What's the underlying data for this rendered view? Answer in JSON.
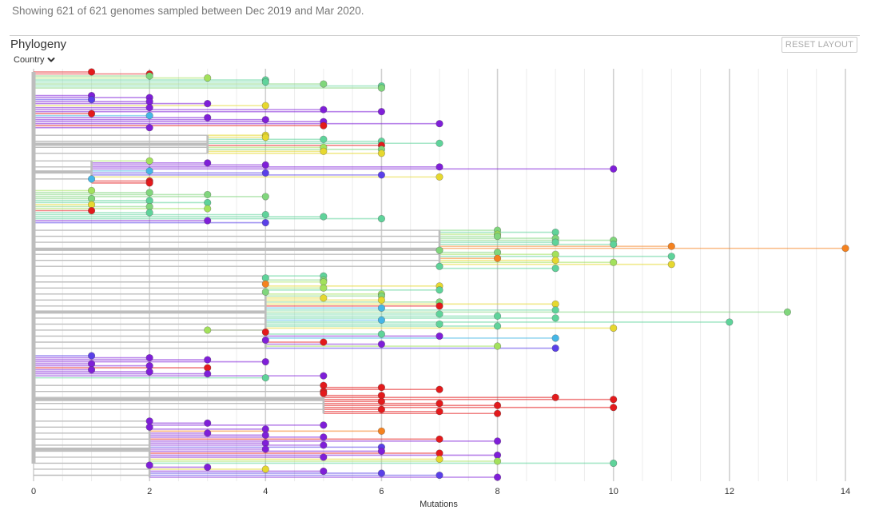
{
  "header": {
    "summary": "Showing 621 of 621 genomes sampled between Dec 2019 and Mar 2020."
  },
  "panel": {
    "title": "Phylogeny",
    "color_by": "Country",
    "color_by_icon": "chevron-down-icon",
    "reset_label": "RESET LAYOUT"
  },
  "colors": {
    "branch": "#bdbdbd",
    "grid_major": "#d0d0d0",
    "grid_minor": "#ececec"
  },
  "chart_data": {
    "type": "scatter",
    "title": "",
    "xlabel": "Mutations",
    "ylabel": "",
    "xlim": [
      0,
      14
    ],
    "x_ticks": [
      0,
      2,
      4,
      6,
      8,
      10,
      12,
      14
    ],
    "grid": true,
    "tree": {
      "note_root_x": 0,
      "clades": [
        {
          "x": 0,
          "tips": [
            {
              "x": 1,
              "c": "#e31a1c"
            },
            {
              "x": 2,
              "c": "#e31a1c"
            },
            {
              "x": 2,
              "c": "#80d67c"
            },
            {
              "x": 3,
              "c": "#a3e15c"
            },
            {
              "x": 4,
              "c": "#5fd39a"
            },
            {
              "x": 4,
              "c": "#5fd39a"
            },
            {
              "x": 5,
              "c": "#80d67c"
            },
            {
              "x": 6,
              "c": "#5fd39a"
            },
            {
              "x": 6,
              "c": "#80d67c"
            }
          ]
        },
        {
          "x": 0,
          "tips": [
            {
              "x": 1,
              "c": "#7f1fd8"
            },
            {
              "x": 2,
              "c": "#7f1fd8"
            },
            {
              "x": 1,
              "c": "#5a40e8"
            },
            {
              "x": 2,
              "c": "#7f1fd8"
            },
            {
              "x": 3,
              "c": "#7f1fd8"
            },
            {
              "x": 4,
              "c": "#e6d82f"
            },
            {
              "x": 2,
              "c": "#7f1fd8"
            },
            {
              "x": 5,
              "c": "#7f1fd8"
            },
            {
              "x": 6,
              "c": "#7f1fd8"
            },
            {
              "x": 1,
              "c": "#e31a1c"
            },
            {
              "x": 2,
              "c": "#45b6e6"
            },
            {
              "x": 3,
              "c": "#7f1fd8"
            },
            {
              "x": 4,
              "c": "#7f1fd8"
            },
            {
              "x": 5,
              "c": "#7f1fd8"
            },
            {
              "x": 7,
              "c": "#7f1fd8"
            },
            {
              "x": 5,
              "c": "#e31a1c"
            },
            {
              "x": 2,
              "c": "#7f1fd8"
            }
          ]
        },
        {
          "x": 3,
          "tips": [
            {
              "x": 4,
              "c": "#e6d82f"
            },
            {
              "x": 4,
              "c": "#e6d82f"
            },
            {
              "x": 5,
              "c": "#5fd39a"
            },
            {
              "x": 6,
              "c": "#5fd39a"
            },
            {
              "x": 7,
              "c": "#5fd39a"
            },
            {
              "x": 6,
              "c": "#e31a1c"
            },
            {
              "x": 5,
              "c": "#a3e15c"
            },
            {
              "x": 6,
              "c": "#80d67c"
            },
            {
              "x": 5,
              "c": "#e6d82f"
            },
            {
              "x": 6,
              "c": "#e6d82f"
            }
          ]
        },
        {
          "x": 1,
          "tips": [
            {
              "x": 2,
              "c": "#a3e15c"
            },
            {
              "x": 3,
              "c": "#7f1fd8"
            },
            {
              "x": 4,
              "c": "#7f1fd8"
            },
            {
              "x": 7,
              "c": "#7f1fd8"
            },
            {
              "x": 10,
              "c": "#7f1fd8"
            },
            {
              "x": 2,
              "c": "#45b6e6"
            },
            {
              "x": 4,
              "c": "#5a40e8"
            },
            {
              "x": 6,
              "c": "#5a40e8"
            },
            {
              "x": 7,
              "c": "#e6d82f"
            },
            {
              "x": 1,
              "c": "#45b6e6"
            },
            {
              "x": 2,
              "c": "#e31a1c"
            },
            {
              "x": 2,
              "c": "#e31a1c"
            }
          ]
        },
        {
          "x": 0,
          "tips": [
            {
              "x": 1,
              "c": "#a3e15c"
            },
            {
              "x": 2,
              "c": "#80d67c"
            },
            {
              "x": 3,
              "c": "#80d67c"
            },
            {
              "x": 4,
              "c": "#80d67c"
            },
            {
              "x": 1,
              "c": "#80d67c"
            },
            {
              "x": 2,
              "c": "#5fd39a"
            },
            {
              "x": 3,
              "c": "#5fd39a"
            },
            {
              "x": 1,
              "c": "#e6d82f"
            },
            {
              "x": 2,
              "c": "#80d67c"
            },
            {
              "x": 3,
              "c": "#a3e15c"
            },
            {
              "x": 1,
              "c": "#e31a1c"
            },
            {
              "x": 2,
              "c": "#5fd39a"
            },
            {
              "x": 4,
              "c": "#5fd39a"
            },
            {
              "x": 5,
              "c": "#5fd39a"
            },
            {
              "x": 6,
              "c": "#5fd39a"
            },
            {
              "x": 3,
              "c": "#7f1fd8"
            },
            {
              "x": 4,
              "c": "#5a40e8"
            }
          ]
        },
        {
          "x": 7,
          "tips": [
            {
              "x": 8,
              "c": "#80d67c"
            },
            {
              "x": 9,
              "c": "#5fd39a"
            },
            {
              "x": 8,
              "c": "#a3e15c"
            },
            {
              "x": 8,
              "c": "#80d67c"
            },
            {
              "x": 9,
              "c": "#80d67c"
            },
            {
              "x": 10,
              "c": "#80d67c"
            },
            {
              "x": 9,
              "c": "#5fd39a"
            },
            {
              "x": 10,
              "c": "#5fd39a"
            },
            {
              "x": 11,
              "c": "#f5821f"
            },
            {
              "x": 14,
              "c": "#f5821f"
            },
            {
              "x": 7,
              "c": "#80d67c"
            },
            {
              "x": 8,
              "c": "#80d67c"
            },
            {
              "x": 9,
              "c": "#a3e15c"
            },
            {
              "x": 11,
              "c": "#5fd39a"
            },
            {
              "x": 8,
              "c": "#f5821f"
            },
            {
              "x": 9,
              "c": "#e6d82f"
            },
            {
              "x": 10,
              "c": "#a3e15c"
            },
            {
              "x": 11,
              "c": "#e6d82f"
            },
            {
              "x": 7,
              "c": "#5fd39a"
            },
            {
              "x": 9,
              "c": "#5fd39a"
            }
          ]
        },
        {
          "x": 4,
          "tips": [
            {
              "x": 5,
              "c": "#5fd39a"
            },
            {
              "x": 4,
              "c": "#5fd39a"
            },
            {
              "x": 5,
              "c": "#80d67c"
            },
            {
              "x": 5,
              "c": "#a3e15c"
            },
            {
              "x": 4,
              "c": "#f5821f"
            },
            {
              "x": 7,
              "c": "#e6d82f"
            },
            {
              "x": 5,
              "c": "#a3e15c"
            },
            {
              "x": 7,
              "c": "#5fd39a"
            },
            {
              "x": 4,
              "c": "#80d67c"
            },
            {
              "x": 6,
              "c": "#a3e15c"
            },
            {
              "x": 6,
              "c": "#80d67c"
            },
            {
              "x": 5,
              "c": "#e6d82f"
            },
            {
              "x": 6,
              "c": "#e6d82f"
            },
            {
              "x": 7,
              "c": "#80d67c"
            },
            {
              "x": 9,
              "c": "#e6d82f"
            },
            {
              "x": 7,
              "c": "#e31a1c"
            },
            {
              "x": 6,
              "c": "#45b6e6"
            },
            {
              "x": 9,
              "c": "#5fd39a"
            },
            {
              "x": 13,
              "c": "#80d67c"
            },
            {
              "x": 7,
              "c": "#5fd39a"
            },
            {
              "x": 8,
              "c": "#5fd39a"
            },
            {
              "x": 9,
              "c": "#5fd39a"
            },
            {
              "x": 6,
              "c": "#45b6e6"
            },
            {
              "x": 12,
              "c": "#5fd39a"
            },
            {
              "x": 7,
              "c": "#5fd39a"
            },
            {
              "x": 8,
              "c": "#5fd39a"
            },
            {
              "x": 10,
              "c": "#e6d82f"
            },
            {
              "x": 3,
              "c": "#a3e15c"
            },
            {
              "x": 4,
              "c": "#e31a1c"
            },
            {
              "x": 6,
              "c": "#5fd39a"
            },
            {
              "x": 7,
              "c": "#7f1fd8"
            },
            {
              "x": 9,
              "c": "#45b6e6"
            },
            {
              "x": 4,
              "c": "#7f1fd8"
            },
            {
              "x": 5,
              "c": "#e31a1c"
            },
            {
              "x": 6,
              "c": "#7f1fd8"
            },
            {
              "x": 8,
              "c": "#a3e15c"
            },
            {
              "x": 9,
              "c": "#5a40e8"
            }
          ]
        },
        {
          "x": 0,
          "tips": [
            {
              "x": 1,
              "c": "#5a40e8"
            },
            {
              "x": 2,
              "c": "#7f1fd8"
            },
            {
              "x": 3,
              "c": "#7f1fd8"
            },
            {
              "x": 4,
              "c": "#7f1fd8"
            },
            {
              "x": 1,
              "c": "#7f1fd8"
            },
            {
              "x": 2,
              "c": "#7f1fd8"
            },
            {
              "x": 3,
              "c": "#e31a1c"
            },
            {
              "x": 1,
              "c": "#7f1fd8"
            },
            {
              "x": 2,
              "c": "#7f1fd8"
            },
            {
              "x": 3,
              "c": "#7f1fd8"
            },
            {
              "x": 5,
              "c": "#7f1fd8"
            },
            {
              "x": 4,
              "c": "#5fd39a"
            }
          ]
        },
        {
          "x": 5,
          "tips": [
            {
              "x": 5,
              "c": "#e31a1c"
            },
            {
              "x": 6,
              "c": "#e31a1c"
            },
            {
              "x": 7,
              "c": "#e31a1c"
            },
            {
              "x": 5,
              "c": "#e31a1c"
            },
            {
              "x": 5,
              "c": "#e31a1c"
            },
            {
              "x": 6,
              "c": "#e31a1c"
            },
            {
              "x": 9,
              "c": "#e31a1c"
            },
            {
              "x": 10,
              "c": "#e31a1c"
            },
            {
              "x": 6,
              "c": "#e31a1c"
            },
            {
              "x": 7,
              "c": "#e31a1c"
            },
            {
              "x": 8,
              "c": "#e31a1c"
            },
            {
              "x": 10,
              "c": "#e31a1c"
            },
            {
              "x": 6,
              "c": "#e31a1c"
            },
            {
              "x": 7,
              "c": "#e31a1c"
            },
            {
              "x": 8,
              "c": "#e31a1c"
            }
          ]
        },
        {
          "x": 2,
          "tips": [
            {
              "x": 2,
              "c": "#7f1fd8"
            },
            {
              "x": 3,
              "c": "#7f1fd8"
            },
            {
              "x": 5,
              "c": "#7f1fd8"
            },
            {
              "x": 2,
              "c": "#7f1fd8"
            },
            {
              "x": 4,
              "c": "#7f1fd8"
            },
            {
              "x": 6,
              "c": "#f5821f"
            },
            {
              "x": 3,
              "c": "#7f1fd8"
            },
            {
              "x": 4,
              "c": "#7f1fd8"
            },
            {
              "x": 5,
              "c": "#7f1fd8"
            },
            {
              "x": 7,
              "c": "#e31a1c"
            },
            {
              "x": 8,
              "c": "#7f1fd8"
            },
            {
              "x": 4,
              "c": "#7f1fd8"
            },
            {
              "x": 5,
              "c": "#7f1fd8"
            },
            {
              "x": 6,
              "c": "#5a40e8"
            },
            {
              "x": 4,
              "c": "#7f1fd8"
            },
            {
              "x": 6,
              "c": "#7f1fd8"
            },
            {
              "x": 7,
              "c": "#e31a1c"
            },
            {
              "x": 8,
              "c": "#7f1fd8"
            },
            {
              "x": 5,
              "c": "#7f1fd8"
            },
            {
              "x": 7,
              "c": "#e6d82f"
            },
            {
              "x": 8,
              "c": "#a3e15c"
            },
            {
              "x": 10,
              "c": "#5fd39a"
            },
            {
              "x": 2,
              "c": "#7f1fd8"
            },
            {
              "x": 3,
              "c": "#7f1fd8"
            },
            {
              "x": 4,
              "c": "#e6d82f"
            },
            {
              "x": 5,
              "c": "#7f1fd8"
            },
            {
              "x": 6,
              "c": "#5a40e8"
            },
            {
              "x": 7,
              "c": "#5a40e8"
            },
            {
              "x": 8,
              "c": "#7f1fd8"
            }
          ]
        }
      ]
    }
  }
}
